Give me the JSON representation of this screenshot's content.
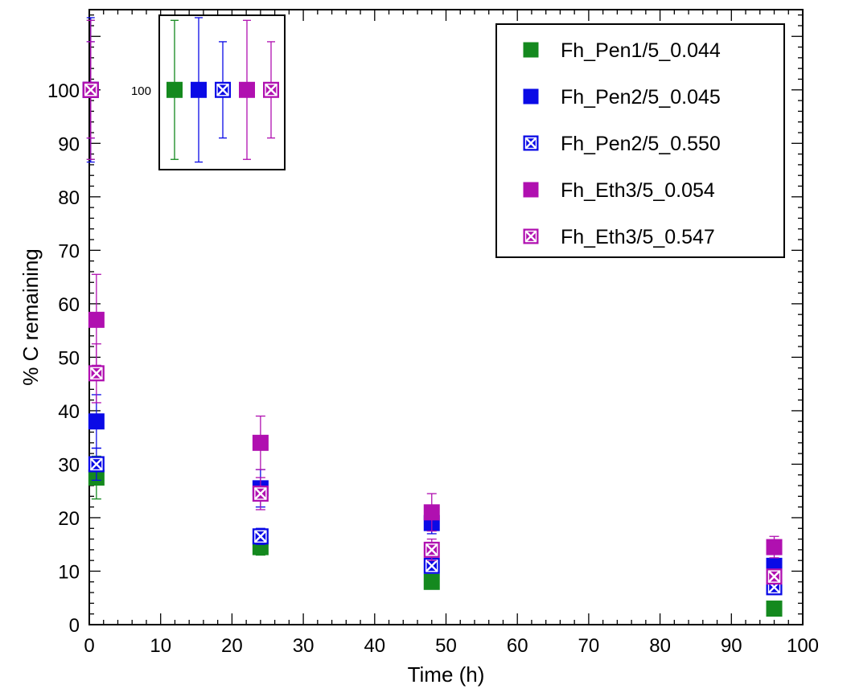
{
  "chart_data": {
    "type": "scatter",
    "title": "",
    "xlabel": "Time (h)",
    "ylabel": "% C remaining",
    "xlim": [
      0,
      100
    ],
    "ylim": [
      0,
      115
    ],
    "xticks": [
      "0",
      "10",
      "20",
      "30",
      "40",
      "50",
      "60",
      "70",
      "80",
      "90",
      "100"
    ],
    "yticks": [
      "0",
      "10",
      "20",
      "30",
      "40",
      "50",
      "60",
      "70",
      "80",
      "90",
      "100"
    ],
    "grid": false,
    "legend_position": "top-right",
    "series": [
      {
        "name": "Fh_Pen1/5_0.044",
        "color": "#14891e",
        "marker": "filled-square",
        "points": [
          {
            "x": 1,
            "y": 27.5,
            "err": 4
          },
          {
            "x": 24,
            "y": 14.5,
            "err": 1.5
          },
          {
            "x": 48,
            "y": 8,
            "err": 0.5
          },
          {
            "x": 96,
            "y": 3,
            "err": 0.3
          }
        ]
      },
      {
        "name": "Fh_Pen2/5_0.045",
        "color": "#0a0ae6",
        "marker": "filled-square",
        "points": [
          {
            "x": 1,
            "y": 38,
            "err": 5
          },
          {
            "x": 24,
            "y": 25.5,
            "err": 3.5
          },
          {
            "x": 48,
            "y": 19,
            "err": 2
          },
          {
            "x": 96,
            "y": 11,
            "err": 1
          }
        ]
      },
      {
        "name": "Fh_Pen2/5_0.550",
        "color": "#0a0ae6",
        "marker": "crossed-square",
        "points": [
          {
            "x": 1,
            "y": 30,
            "err": 3
          },
          {
            "x": 24,
            "y": 16.5,
            "err": 1.5
          },
          {
            "x": 48,
            "y": 11,
            "err": 1
          },
          {
            "x": 96,
            "y": 7,
            "err": 0.5
          }
        ]
      },
      {
        "name": "Fh_Eth3/5_0.054",
        "color": "#b010b0",
        "marker": "filled-square",
        "points": [
          {
            "x": 1,
            "y": 57,
            "err": 8.5
          },
          {
            "x": 24,
            "y": 34,
            "err": 5
          },
          {
            "x": 48,
            "y": 21,
            "err": 3.5
          },
          {
            "x": 96,
            "y": 14.5,
            "err": 2
          }
        ]
      },
      {
        "name": "Fh_Eth3/5_0.547",
        "color": "#b010b0",
        "marker": "crossed-square",
        "points": [
          {
            "x": 1,
            "y": 47,
            "err": 5.5
          },
          {
            "x": 24,
            "y": 24.5,
            "err": 3
          },
          {
            "x": 48,
            "y": 14,
            "err": 2
          },
          {
            "x": 96,
            "y": 9,
            "err": 1
          }
        ]
      }
    ],
    "inset": {
      "label": "100",
      "value": 100,
      "errors": [
        13,
        13.5,
        9,
        13,
        9
      ]
    }
  }
}
